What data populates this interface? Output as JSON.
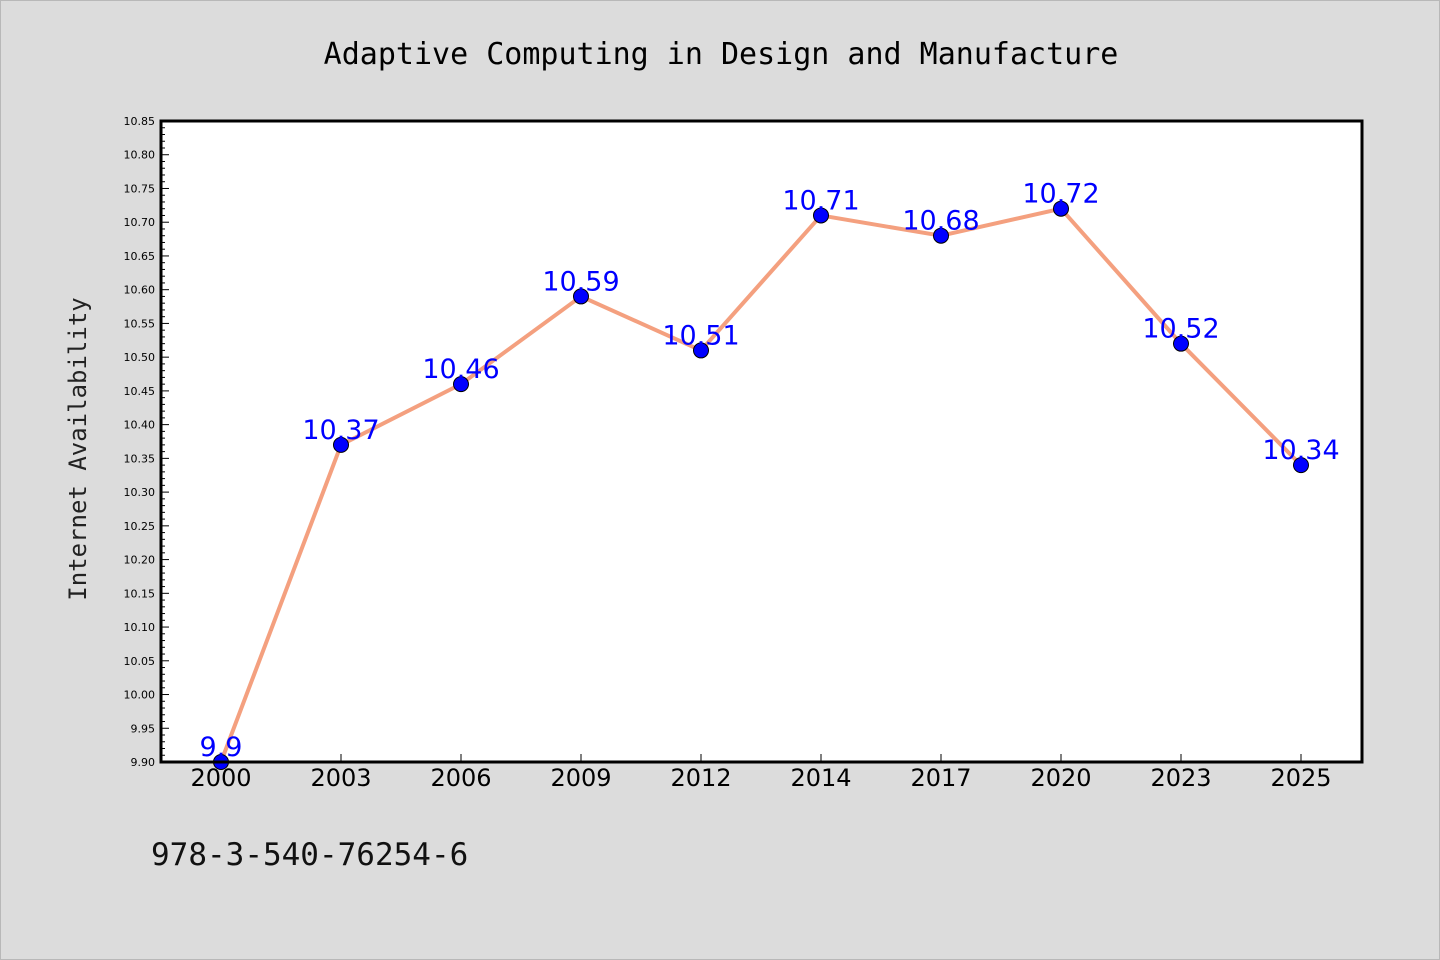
{
  "chart_data": {
    "type": "line",
    "title": "Adaptive Computing in Design and Manufacture",
    "xlabel": "",
    "ylabel": "Internet Availability",
    "categories": [
      "2000",
      "2003",
      "2006",
      "2009",
      "2012",
      "2014",
      "2017",
      "2020",
      "2023",
      "2025"
    ],
    "series": [
      {
        "values": [
          9.9,
          10.37,
          10.46,
          10.59,
          10.51,
          10.71,
          10.68,
          10.72,
          10.52,
          10.34
        ],
        "data_labels": [
          "9.9",
          "10.37",
          "10.46",
          "10.59",
          "10.51",
          "10.71",
          "10.68",
          "10.72",
          "10.52",
          "10.34"
        ],
        "line_color": "#f4a07f",
        "marker_color": "#0000ff"
      }
    ],
    "ylim": [
      9.9,
      10.85
    ],
    "yticks": [
      "9.90",
      "9.95",
      "10.00",
      "10.05",
      "10.10",
      "10.15",
      "10.20",
      "10.25",
      "10.30",
      "10.35",
      "10.40",
      "10.45",
      "10.50",
      "10.55",
      "10.60",
      "10.65",
      "10.70",
      "10.75",
      "10.80",
      "10.85"
    ],
    "grid": false,
    "legend": "none"
  },
  "footer": {
    "isbn": "978-3-540-76254-6"
  },
  "colors": {
    "background": "#dcdcdc",
    "plot_background": "#ffffff",
    "line": "#f4a07f",
    "marker": "#0000ff",
    "data_label": "#0000ff"
  }
}
